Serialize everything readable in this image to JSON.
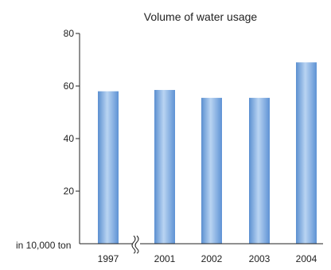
{
  "chart_data": {
    "type": "bar",
    "title": "Volume of water usage",
    "unit_label": "in 10,000 ton",
    "categories": [
      "1997",
      "2001",
      "2002",
      "2003",
      "2004"
    ],
    "values": [
      58,
      58.5,
      55.5,
      55.5,
      69
    ],
    "ylim": [
      0,
      80
    ],
    "yticks": [
      20,
      40,
      60,
      80
    ],
    "grid": false,
    "axis_break": "between 1997 and 2001",
    "bar_color": "#6a9fdb",
    "bar_highlight": "#b9d4f2"
  }
}
